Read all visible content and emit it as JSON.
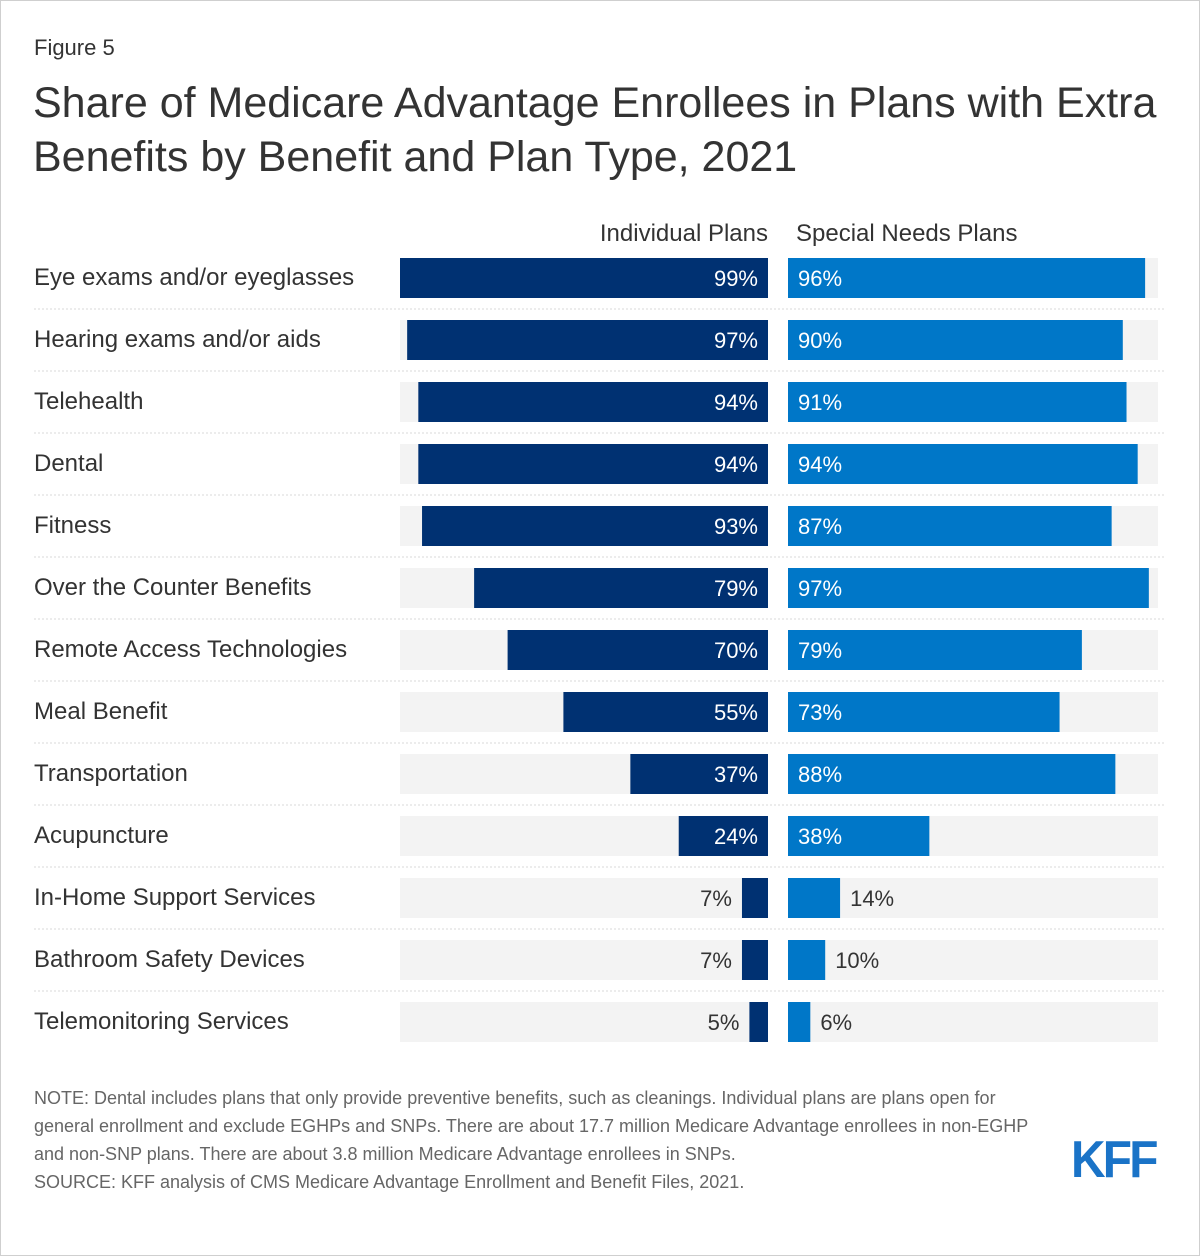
{
  "figure_label": "Figure 5",
  "title": "Share of Medicare Advantage Enrollees in Plans with Extra Benefits by Benefit and Plan Type, 2021",
  "colors": {
    "individual": "#003172",
    "special": "#0077c8",
    "track": "#f3f3f3",
    "label_inside": "#ffffff",
    "label_outside": "#333333"
  },
  "chart_data": {
    "type": "bar",
    "orientation": "horizontal",
    "title": "Share of Medicare Advantage Enrollees in Plans with Extra Benefits by Benefit and Plan Type, 2021",
    "categories": [
      "Eye exams and/or eyeglasses",
      "Hearing exams and/or aids",
      "Telehealth",
      "Dental",
      "Fitness",
      "Over the Counter Benefits",
      "Remote Access Technologies",
      "Meal Benefit",
      "Transportation",
      "Acupuncture",
      "In-Home Support Services",
      "Bathroom Safety Devices",
      "Telemonitoring Services"
    ],
    "series": [
      {
        "name": "Individual Plans",
        "values": [
          99,
          97,
          94,
          94,
          93,
          79,
          70,
          55,
          37,
          24,
          7,
          7,
          5
        ],
        "labels": [
          "99%",
          "97%",
          "94%",
          "94%",
          "93%",
          "79%",
          "70%",
          "55%",
          "37%",
          "24%",
          "7%",
          "7%",
          "5%"
        ]
      },
      {
        "name": "Special Needs Plans",
        "values": [
          96,
          90,
          91,
          94,
          87,
          97,
          79,
          73,
          88,
          38,
          14,
          10,
          6
        ],
        "labels": [
          "96%",
          "90%",
          "91%",
          "94%",
          "87%",
          "97%",
          "79%",
          "73%",
          "88%",
          "38%",
          "14%",
          "10%",
          "6%"
        ]
      }
    ],
    "xlim": [
      0,
      100
    ],
    "xlabel": "",
    "ylabel": ""
  },
  "note": "NOTE: Dental includes plans that only provide preventive benefits, such as cleanings. Individual plans are plans open for general enrollment and exclude EGHPs and SNPs. There are about 17.7 million Medicare Advantage enrollees in non-EGHP and non-SNP plans. There are about 3.8 million Medicare Advantage enrollees in SNPs.",
  "source": "SOURCE: KFF analysis of CMS Medicare Advantage Enrollment and Benefit Files, 2021.",
  "logo_text": "KFF"
}
